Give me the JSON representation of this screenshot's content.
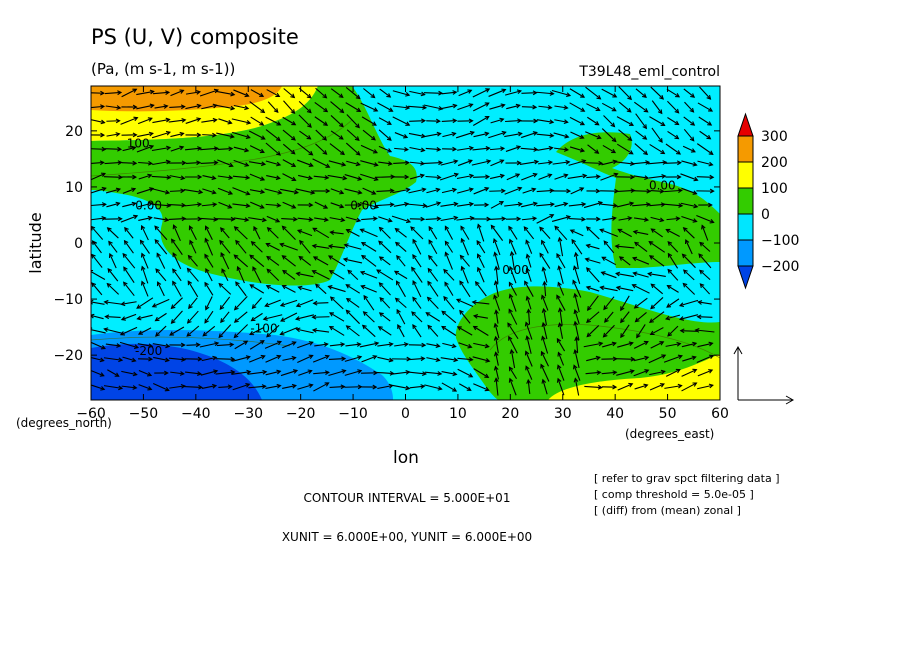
{
  "header": {
    "title": "PS (U, V) composite",
    "units": "(Pa, (m s-1, m s-1))",
    "run_name": "T39L48_eml_control"
  },
  "axes": {
    "ylabel": "latitude",
    "xlabel": "lon",
    "y_unit_label": "(degrees_north)",
    "x_unit_label": "(degrees_east)"
  },
  "footer": {
    "contour_interval": "CONTOUR INTERVAL = 5.000E+01",
    "unit_vectors": "XUNIT = 6.000E+00, YUNIT = 6.000E+00",
    "notes": [
      "[ refer to grav spct filtering data ]",
      "[ comp threshold = 5.0e-05 ]",
      "[ (diff) from (mean) zonal ]"
    ]
  },
  "colorbar": {
    "labels": [
      "300",
      "200",
      "100",
      "0",
      "−100",
      "−200"
    ],
    "colors": [
      "#e60000",
      "#f59a00",
      "#ffff00",
      "#33cc00",
      "#00e6ff",
      "#0099ff",
      "#0044e6"
    ]
  },
  "chart_data": {
    "type": "contour_vector",
    "title": "PS (U, V) composite",
    "xlabel": "lon",
    "ylabel": "latitude",
    "xlim": [
      -60,
      60
    ],
    "ylim": [
      -28,
      28
    ],
    "x_ticks": [
      -60,
      -50,
      -40,
      -30,
      -20,
      -10,
      0,
      10,
      20,
      30,
      40,
      50,
      60
    ],
    "y_ticks": [
      -20,
      -10,
      0,
      10,
      20
    ],
    "contour_interval": 50,
    "levels": [
      -200,
      -100,
      0,
      100,
      200,
      300
    ],
    "contour_labels": [
      {
        "text": "100",
        "lon": -51,
        "lat": 17
      },
      {
        "text": "0.00",
        "lon": -49,
        "lat": 6
      },
      {
        "text": "0.00",
        "lon": -8,
        "lat": 6
      },
      {
        "text": "0.00",
        "lon": 49,
        "lat": 9.5
      },
      {
        "text": "0.00",
        "lon": 21,
        "lat": -5.5
      },
      {
        "text": "-100",
        "lon": -27,
        "lat": -16
      },
      {
        "text": "-200",
        "lon": -49,
        "lat": -20
      }
    ],
    "fill_regions": [
      {
        "level": "0 to 100",
        "color": "#33cc00",
        "name": "west-equatorial-band"
      },
      {
        "level": "0 to 100",
        "color": "#33cc00",
        "name": "east-northern-lobe"
      },
      {
        "level": "0 to 100",
        "color": "#33cc00",
        "name": "south-east-lobe"
      },
      {
        "level": "100 to 200",
        "color": "#ffff00",
        "name": "north-west-high"
      },
      {
        "level": "200 to 300",
        "color": "#f59a00",
        "name": "north-west-peak"
      },
      {
        "level": "100 to 200",
        "color": "#ffff00",
        "name": "south-east-high"
      },
      {
        "level": "-200 to -100",
        "color": "#0099ff",
        "name": "south-west-low"
      },
      {
        "level": "< -200",
        "color": "#0044e6",
        "name": "south-west-deep-low"
      }
    ],
    "reference_vector": {
      "u": 6.0,
      "v": 6.0
    }
  }
}
